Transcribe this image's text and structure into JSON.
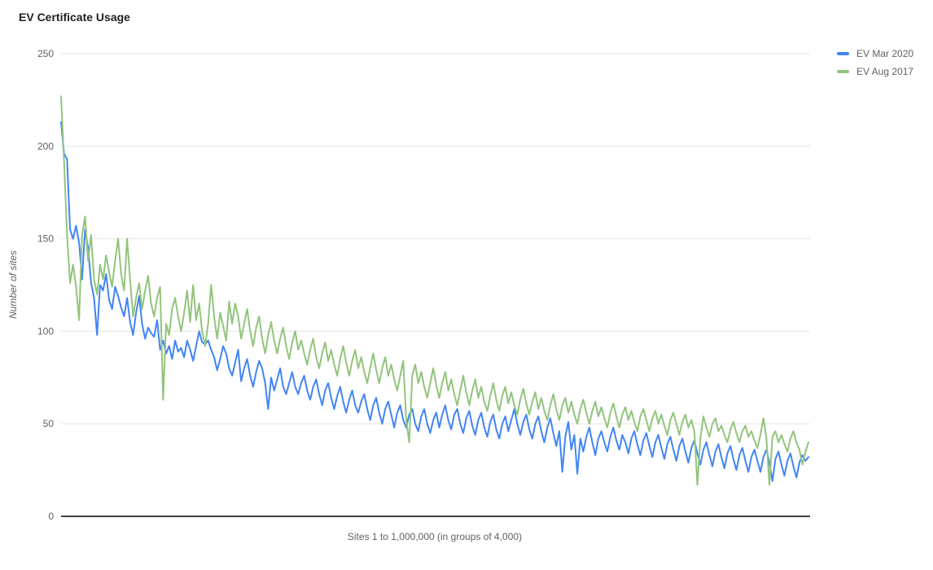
{
  "title": "EV Certificate Usage",
  "colors": {
    "series_blue": "#4285F4",
    "series_green": "#93C47D",
    "gridline": "#E6E6E6",
    "baseline": "#424242",
    "title_text": "#212121",
    "axis_text": "#616161"
  },
  "chart_data": {
    "type": "line",
    "title": "EV Certificate Usage",
    "xlabel": "Sites 1 to 1,000,000 (in groups of 4,000)",
    "ylabel": "Number of sites",
    "ylim": [
      0,
      250
    ],
    "yticks": [
      0,
      50,
      100,
      150,
      200,
      250
    ],
    "grid": "horizontal",
    "legend_position": "right-top",
    "series": [
      {
        "name": "EV Mar 2020",
        "color": "#4285F4",
        "values": [
          213,
          196,
          193,
          155,
          150,
          157,
          148,
          128,
          155,
          145,
          126,
          118,
          98,
          125,
          122,
          131,
          117,
          112,
          124,
          119,
          113,
          108,
          118,
          105,
          98,
          110,
          119,
          104,
          96,
          102,
          99,
          97,
          106,
          90,
          95,
          88,
          92,
          85,
          95,
          89,
          91,
          86,
          95,
          90,
          84,
          92,
          100,
          94,
          93,
          95,
          90,
          86,
          79,
          85,
          92,
          88,
          80,
          76,
          83,
          90,
          73,
          80,
          85,
          76,
          70,
          78,
          84,
          80,
          72,
          58,
          75,
          68,
          74,
          80,
          70,
          66,
          72,
          78,
          70,
          66,
          72,
          76,
          68,
          63,
          70,
          74,
          66,
          60,
          68,
          72,
          64,
          58,
          65,
          70,
          62,
          56,
          63,
          68,
          60,
          56,
          62,
          66,
          58,
          52,
          60,
          64,
          56,
          50,
          58,
          62,
          55,
          48,
          56,
          60,
          52,
          48,
          55,
          58,
          50,
          46,
          54,
          58,
          50,
          45,
          52,
          56,
          48,
          55,
          60,
          52,
          47,
          55,
          58,
          50,
          45,
          53,
          57,
          49,
          44,
          52,
          56,
          48,
          43,
          51,
          55,
          47,
          42,
          50,
          54,
          46,
          52,
          58,
          50,
          44,
          51,
          55,
          47,
          42,
          50,
          54,
          46,
          40,
          48,
          53,
          45,
          38,
          46,
          24,
          43,
          51,
          36,
          44,
          23,
          42,
          35,
          43,
          48,
          40,
          33,
          42,
          46,
          40,
          35,
          43,
          48,
          41,
          36,
          44,
          40,
          34,
          42,
          46,
          39,
          33,
          41,
          45,
          38,
          32,
          40,
          44,
          37,
          31,
          39,
          43,
          36,
          30,
          38,
          42,
          35,
          29,
          37,
          41,
          34,
          28,
          36,
          40,
          33,
          27,
          35,
          39,
          32,
          26,
          34,
          38,
          31,
          25,
          33,
          37,
          30,
          24,
          32,
          36,
          30,
          24,
          32,
          36,
          29,
          19,
          31,
          35,
          28,
          22,
          30,
          34,
          27,
          21,
          29,
          33,
          30,
          32
        ]
      },
      {
        "name": "EV Aug 2017",
        "color": "#93C47D",
        "values": [
          227,
          192,
          152,
          126,
          136,
          124,
          106,
          152,
          162,
          138,
          152,
          128,
          120,
          136,
          128,
          141,
          132,
          124,
          138,
          150,
          131,
          122,
          150,
          128,
          108,
          118,
          126,
          112,
          122,
          130,
          115,
          108,
          118,
          124,
          63,
          104,
          98,
          112,
          118,
          108,
          100,
          110,
          122,
          105,
          125,
          106,
          115,
          100,
          92,
          104,
          125,
          108,
          96,
          110,
          103,
          95,
          116,
          104,
          115,
          108,
          96,
          104,
          112,
          100,
          92,
          102,
          108,
          96,
          88,
          98,
          105,
          95,
          88,
          96,
          102,
          92,
          85,
          94,
          100,
          90,
          95,
          88,
          82,
          90,
          96,
          86,
          80,
          88,
          94,
          84,
          90,
          82,
          76,
          85,
          92,
          83,
          76,
          84,
          90,
          80,
          86,
          78,
          72,
          80,
          88,
          79,
          72,
          80,
          86,
          76,
          82,
          74,
          68,
          76,
          84,
          52,
          40,
          76,
          82,
          72,
          78,
          70,
          64,
          72,
          80,
          71,
          64,
          72,
          78,
          68,
          74,
          66,
          60,
          68,
          76,
          67,
          60,
          68,
          74,
          64,
          70,
          62,
          57,
          65,
          72,
          63,
          57,
          65,
          70,
          61,
          67,
          60,
          55,
          63,
          69,
          61,
          55,
          62,
          67,
          58,
          64,
          57,
          52,
          60,
          66,
          58,
          52,
          60,
          64,
          56,
          62,
          55,
          50,
          58,
          63,
          56,
          50,
          57,
          62,
          54,
          59,
          53,
          48,
          56,
          61,
          54,
          48,
          55,
          59,
          52,
          57,
          51,
          46,
          54,
          58,
          52,
          46,
          53,
          57,
          50,
          55,
          49,
          44,
          52,
          56,
          50,
          44,
          51,
          55,
          48,
          52,
          46,
          17,
          42,
          54,
          48,
          43,
          50,
          53,
          46,
          49,
          44,
          40,
          47,
          51,
          45,
          40,
          46,
          49,
          43,
          46,
          41,
          37,
          44,
          53,
          42,
          17,
          43,
          46,
          40,
          44,
          39,
          35,
          42,
          46,
          40,
          36,
          28,
          35,
          40
        ]
      }
    ]
  }
}
